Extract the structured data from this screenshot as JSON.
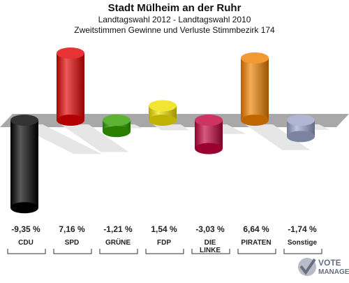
{
  "header": {
    "title": "Stadt Mülheim an der Ruhr",
    "subtitle1": "Landtagswahl 2012 - Landtagswahl 2010",
    "subtitle2": "Zweitstimmen Gewinne und Verluste Stimmbezirk 174"
  },
  "chart_data": {
    "type": "bar",
    "categories": [
      "CDU",
      "SPD",
      "GRÜNE",
      "FDP",
      "DIE LINKE",
      "PIRATEN",
      "Sonstige"
    ],
    "values": [
      -9.35,
      7.16,
      -1.21,
      1.54,
      -3.03,
      6.64,
      -1.74
    ],
    "value_labels": [
      "-9,35 %",
      "7,16 %",
      "-1,21 %",
      "1,54 %",
      "-3,03 %",
      "6,64 %",
      "-1,74 %"
    ],
    "colors": [
      "#000000",
      "#e00000",
      "#33a000",
      "#f0e000",
      "#c0003c",
      "#f08000",
      "#9aa4c8"
    ],
    "grid": false
  },
  "logo": {
    "line1": "VOTE",
    "line2": "MANAGER"
  }
}
